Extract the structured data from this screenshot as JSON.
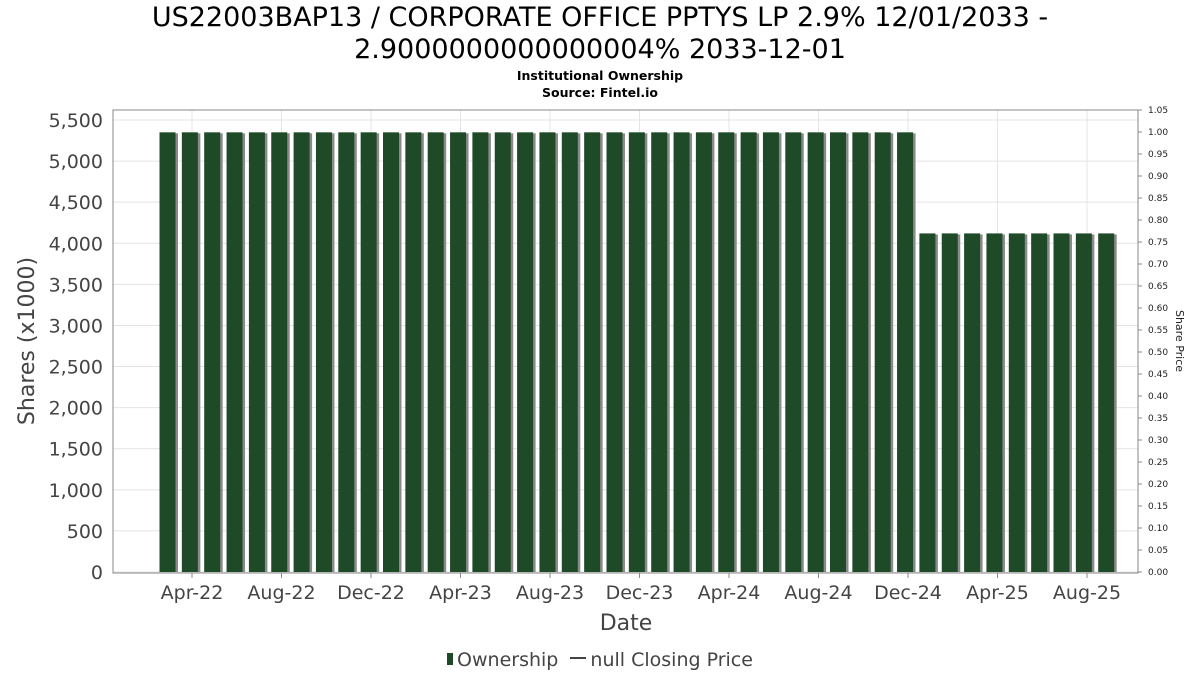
{
  "title_line1": "US22003BAP13 / CORPORATE OFFICE PPTYS LP 2.9% 12/01/2033 -",
  "title_line2": "2.9000000000000004% 2033-12-01",
  "subtitle": "Institutional Ownership",
  "source": "Source: Fintel.io",
  "legend": {
    "ownership": "Ownership",
    "price": "null Closing Price"
  },
  "colors": {
    "bar": "#1f4a28",
    "bar_shadow": "#8a8a8a",
    "grid": "#e4e4e4",
    "frame": "#888888"
  },
  "chart_data": {
    "type": "bar",
    "xlabel": "Date",
    "ylabel": "Shares (x1000)",
    "y2label": "Share Price",
    "ylim": [
      0,
      5600
    ],
    "y2lim": [
      0,
      1.05
    ],
    "yticks": [
      "0",
      "500",
      "1,000",
      "1,500",
      "2,000",
      "2,500",
      "3,000",
      "3,500",
      "4,000",
      "4,500",
      "5,000",
      "5,500"
    ],
    "y2ticks": [
      "0.00",
      "0.05",
      "0.10",
      "0.15",
      "0.20",
      "0.25",
      "0.30",
      "0.35",
      "0.40",
      "0.45",
      "0.50",
      "0.55",
      "0.60",
      "0.65",
      "0.70",
      "0.75",
      "0.80",
      "0.85",
      "0.90",
      "0.95",
      "1.00",
      "1.05"
    ],
    "xticks": [
      "Apr-22",
      "Aug-22",
      "Dec-22",
      "Apr-23",
      "Aug-23",
      "Dec-23",
      "Apr-24",
      "Aug-24",
      "Dec-24",
      "Apr-25",
      "Aug-25"
    ],
    "grid": true,
    "series": [
      {
        "name": "Ownership",
        "values": [
          5350,
          5350,
          5350,
          5350,
          5350,
          5350,
          5350,
          5350,
          5350,
          5350,
          5350,
          5350,
          5350,
          5350,
          5350,
          5350,
          5350,
          5350,
          5350,
          5350,
          5350,
          5350,
          5350,
          5350,
          5350,
          5350,
          5350,
          5350,
          5350,
          5350,
          5350,
          5350,
          5350,
          5350,
          4120,
          4120,
          4120,
          4120,
          4120,
          4120,
          4120,
          4120,
          4120
        ]
      }
    ]
  }
}
